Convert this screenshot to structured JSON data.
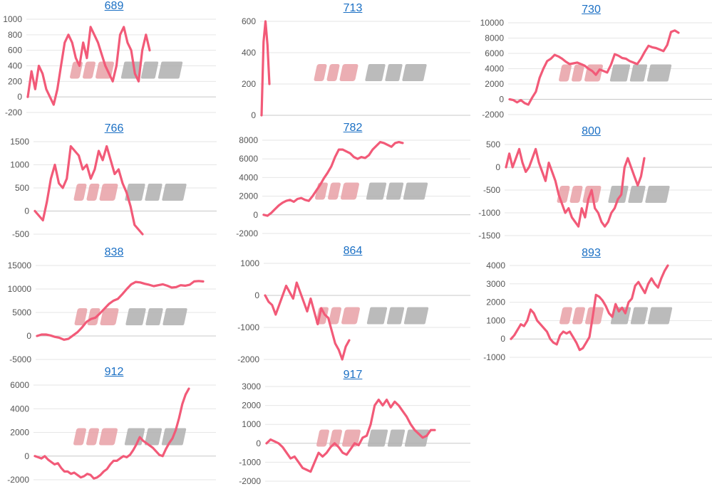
{
  "style": {
    "line_color": "#f25a78",
    "title_color": "#1a6fc4",
    "grid": true,
    "watermark_colors": [
      "#e8a0a6",
      "#b0b0b0"
    ]
  },
  "chart_data": [
    {
      "type": "line",
      "title": "689",
      "yticks": [
        -200,
        0,
        200,
        400,
        600,
        800,
        1000
      ],
      "ylim": [
        -200,
        1000
      ],
      "values": [
        0,
        330,
        100,
        400,
        300,
        100,
        0,
        -100,
        100,
        400,
        700,
        800,
        700,
        500,
        400,
        700,
        500,
        900,
        800,
        700,
        550,
        400,
        300,
        200,
        400,
        800,
        900,
        700,
        600,
        300,
        200,
        600,
        800,
        600
      ]
    },
    {
      "type": "line",
      "title": "713",
      "yticks": [
        0,
        200,
        400,
        600
      ],
      "ylim": [
        0,
        600
      ],
      "values": [
        0,
        470,
        600,
        450,
        200
      ]
    },
    {
      "type": "line",
      "title": "730",
      "yticks": [
        -2000,
        0,
        2000,
        4000,
        6000,
        8000,
        10000
      ],
      "ylim": [
        -2000,
        10000
      ],
      "values": [
        0,
        -100,
        -400,
        -100,
        -500,
        -700,
        200,
        1000,
        2800,
        4000,
        5000,
        5300,
        5800,
        5600,
        5300,
        4900,
        4600,
        4700,
        4800,
        4600,
        4400,
        4000,
        3700,
        3200,
        3900,
        3700,
        3500,
        4500,
        5900,
        5700,
        5400,
        5300,
        5000,
        4800,
        4600,
        5300,
        6200,
        7000,
        6800,
        6700,
        6500,
        6300,
        7100,
        8800,
        9000,
        8700
      ]
    },
    {
      "type": "line",
      "title": "766",
      "yticks": [
        -500,
        0,
        500,
        1000,
        1500
      ],
      "ylim": [
        -500,
        1500
      ],
      "values": [
        0,
        -100,
        -200,
        200,
        700,
        1000,
        600,
        500,
        700,
        1400,
        1300,
        1200,
        900,
        1000,
        700,
        900,
        1300,
        1100,
        1400,
        1100,
        800,
        900,
        600,
        400,
        100,
        -300,
        -400,
        -500
      ]
    },
    {
      "type": "line",
      "title": "782",
      "yticks": [
        -2000,
        0,
        2000,
        4000,
        6000,
        8000
      ],
      "ylim": [
        -2000,
        8000
      ],
      "values": [
        0,
        -100,
        200,
        600,
        1000,
        1300,
        1500,
        1600,
        1400,
        1700,
        1800,
        1600,
        1500,
        2000,
        2600,
        3200,
        3900,
        4500,
        5200,
        6200,
        7000,
        7000,
        6800,
        6600,
        6200,
        6000,
        6200,
        6100,
        6400,
        7000,
        7400,
        7800,
        7700,
        7500,
        7300,
        7700,
        7800,
        7700
      ]
    },
    {
      "type": "line",
      "title": "800",
      "yticks": [
        -1500,
        -1000,
        -500,
        0,
        500
      ],
      "ylim": [
        -1500,
        500
      ],
      "values": [
        0,
        300,
        0,
        200,
        400,
        100,
        -100,
        0,
        200,
        400,
        100,
        -100,
        -300,
        100,
        -100,
        -300,
        -600,
        -800,
        -1000,
        -900,
        -1100,
        -1200,
        -1300,
        -900,
        -1100,
        -700,
        -500,
        -900,
        -1000,
        -1200,
        -1300,
        -1200,
        -1000,
        -900,
        -700,
        -600,
        0,
        200,
        0,
        -200,
        -400,
        -200,
        200
      ]
    },
    {
      "type": "line",
      "title": "838",
      "yticks": [
        -5000,
        0,
        5000,
        10000,
        15000
      ],
      "ylim": [
        -5000,
        15000
      ],
      "values": [
        0,
        300,
        300,
        100,
        -200,
        -400,
        -800,
        -600,
        100,
        800,
        1800,
        3000,
        3600,
        3900,
        4800,
        5800,
        6800,
        7500,
        7900,
        8900,
        10000,
        11000,
        11500,
        11400,
        11100,
        10900,
        10600,
        10800,
        11000,
        10700,
        10300,
        10400,
        10800,
        10700,
        10900,
        11600,
        11700,
        11600
      ]
    },
    {
      "type": "line",
      "title": "864",
      "yticks": [
        -2000,
        -1000,
        0,
        1000
      ],
      "ylim": [
        -2000,
        1000
      ],
      "values": [
        0,
        -200,
        -300,
        -600,
        -300,
        0,
        300,
        100,
        -100,
        400,
        100,
        -200,
        -500,
        -100,
        -500,
        -900,
        -400,
        -600,
        -700,
        -1100,
        -1500,
        -1700,
        -2000,
        -1600,
        -1400
      ]
    },
    {
      "type": "line",
      "title": "893",
      "yticks": [
        -1000,
        0,
        1000,
        2000,
        3000,
        4000
      ],
      "ylim": [
        -1000,
        4000
      ],
      "values": [
        0,
        200,
        500,
        800,
        700,
        1000,
        1600,
        1400,
        1000,
        800,
        600,
        400,
        0,
        -200,
        -300,
        200,
        400,
        300,
        400,
        100,
        -200,
        -600,
        -500,
        -200,
        100,
        1200,
        2400,
        2300,
        2100,
        1800,
        1400,
        1200,
        1900,
        1500,
        1700,
        1400,
        2000,
        2200,
        2900,
        3100,
        2800,
        2500,
        3000,
        3300,
        3000,
        2800,
        3300,
        3700,
        4000
      ]
    },
    {
      "type": "line",
      "title": "912",
      "yticks": [
        -2000,
        0,
        2000,
        4000,
        6000
      ],
      "ylim": [
        -2000,
        6000
      ],
      "values": [
        0,
        -100,
        -200,
        0,
        -300,
        -500,
        -700,
        -600,
        -1000,
        -1300,
        -1300,
        -1500,
        -1400,
        -1600,
        -1800,
        -1700,
        -1500,
        -1600,
        -1900,
        -1800,
        -1600,
        -1300,
        -1100,
        -700,
        -400,
        -400,
        -200,
        0,
        -100,
        100,
        500,
        1000,
        1600,
        1300,
        1100,
        900,
        700,
        400,
        100,
        0,
        600,
        1100,
        1500,
        2200,
        3200,
        4400,
        5200,
        5700
      ]
    },
    {
      "type": "line",
      "title": "917",
      "yticks": [
        -2000,
        -1000,
        0,
        1000,
        2000,
        3000
      ],
      "ylim": [
        -2000,
        3000
      ],
      "values": [
        0,
        200,
        100,
        0,
        -200,
        -500,
        -800,
        -700,
        -1000,
        -1300,
        -1400,
        -1500,
        -1000,
        -500,
        -700,
        -500,
        -200,
        0,
        -200,
        -500,
        -600,
        -300,
        0,
        -100,
        300,
        400,
        1000,
        2000,
        2300,
        2000,
        2300,
        1900,
        2200,
        2000,
        1700,
        1400,
        1000,
        700,
        500,
        300,
        400,
        700,
        700
      ]
    }
  ]
}
